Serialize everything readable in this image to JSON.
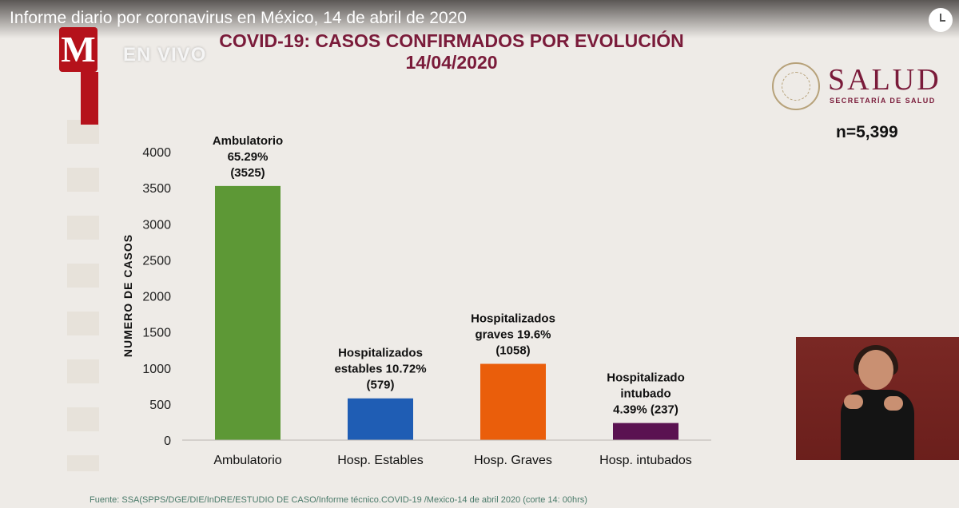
{
  "video": {
    "title": "Informe diario por coronavirus en México, 14 de abril de 2020",
    "live_label": "EN VIVO",
    "channel_logo": "M"
  },
  "branding": {
    "salud": "SALUD",
    "salud_sub": "SECRETARÍA DE SALUD",
    "n_label": "n=5,399"
  },
  "footer": {
    "source": "Fuente: SSA(SPPS/DGE/DIE/InDRE/ESTUDIO DE CASO/Informe técnico.COVID-19 /Mexico-14 de abril 2020 (corte 14: 00hrs)"
  },
  "colors": {
    "headline": "#7a1b3a",
    "bar_ambulatorio": "#5d9836",
    "bar_estables": "#1f5db4",
    "bar_graves": "#ea5e0b",
    "bar_intubados": "#5a1251"
  },
  "chart_data": {
    "type": "bar",
    "title": "COVID-19: CASOS CONFIRMADOS POR EVOLUCIÓN",
    "subtitle": "14/04/2020",
    "xlabel": "",
    "ylabel": "NUMERO DE CASOS",
    "ylim": [
      0,
      4000
    ],
    "yticks": [
      0,
      500,
      1000,
      1500,
      2000,
      2500,
      3000,
      3500,
      4000
    ],
    "categories": [
      "Ambulatorio",
      "Hosp. Estables",
      "Hosp. Graves",
      "Hosp. intubados"
    ],
    "values": [
      3525,
      579,
      1058,
      237
    ],
    "bar_colors": [
      "#5d9836",
      "#1f5db4",
      "#ea5e0b",
      "#5a1251"
    ],
    "data_labels": [
      [
        "Ambulatorio",
        "65.29%",
        "(3525)"
      ],
      [
        "Hospitalizados",
        "estables 10.72%",
        "(579)"
      ],
      [
        "Hospitalizados",
        "graves 19.6%",
        "(1058)"
      ],
      [
        "Hospitalizado",
        "intubado",
        "4.39% (237)"
      ]
    ],
    "grid": false,
    "legend": "none"
  }
}
